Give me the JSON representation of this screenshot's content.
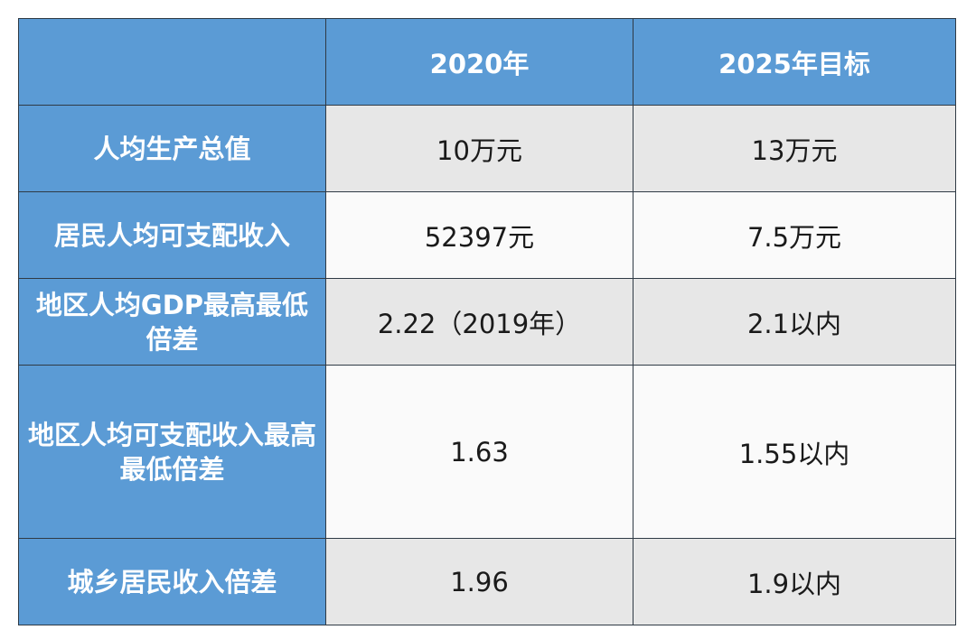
{
  "table": {
    "header": {
      "corner": "",
      "col2": "2020年",
      "col3": "2025年目标"
    },
    "rows": [
      {
        "label": "人均生产总值",
        "v2020": "10万元",
        "v2025": "13万元"
      },
      {
        "label": "居民人均可支配收入",
        "v2020": "52397元",
        "v2025": "7.5万元"
      },
      {
        "label": "地区人均GDP最高最低倍差",
        "v2020": "2.22（2019年）",
        "v2025": "2.1以内"
      },
      {
        "label": "地区人均可支配收入最高最低倍差",
        "v2020": "1.63",
        "v2025": "1.55以内"
      },
      {
        "label": "城乡居民收入倍差",
        "v2020": "1.96",
        "v2025": "1.9以内"
      }
    ]
  },
  "colors": {
    "header_bg": "#5b9bd5",
    "header_text": "#ffffff",
    "row_shade": "#e7e7e7",
    "row_plain": "#fafafa",
    "border": "#2f3a45"
  }
}
